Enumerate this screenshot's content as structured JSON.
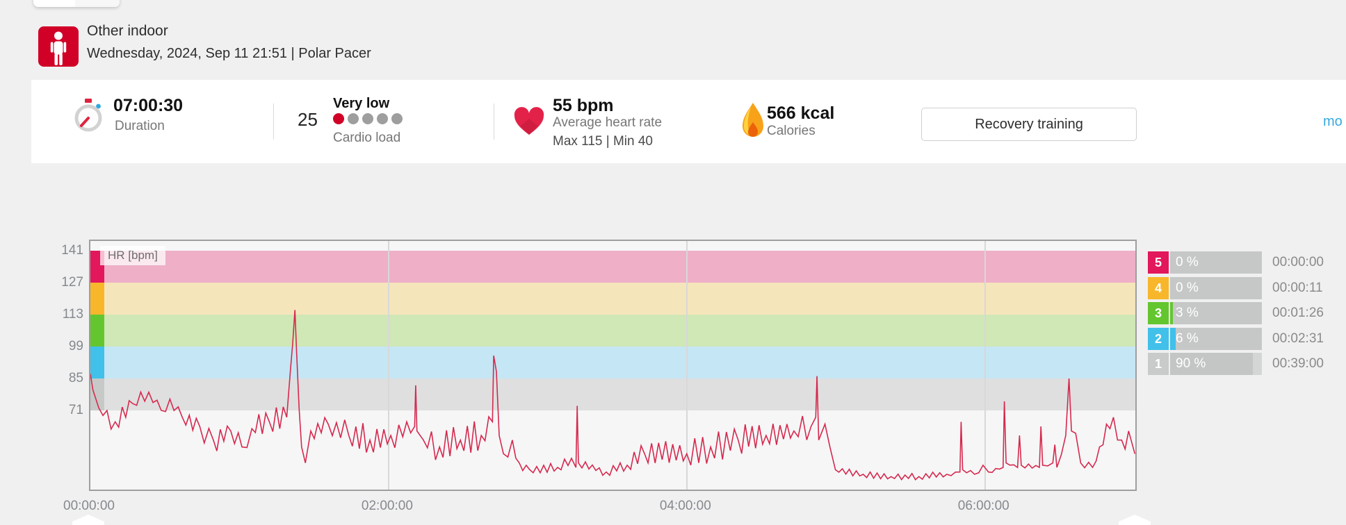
{
  "header": {
    "activity_type": "Other indoor",
    "date_line": "Wednesday, 2024, Sep 11 21:51  |  Polar Pacer",
    "icon": "person-activity-icon",
    "icon_bg": "#d10027"
  },
  "stats": {
    "duration": {
      "value": "07:00:30",
      "label": "Duration"
    },
    "cardio_load": {
      "value": "25",
      "level": "Very low",
      "label": "Cardio load",
      "dots_total": 5,
      "dots_filled": 1,
      "dot_filled_color": "#d10027",
      "dot_empty_color": "#9e9e9e"
    },
    "heart_rate": {
      "value": "55 bpm",
      "label": "Average heart rate",
      "max_min": "Max 115  |  Min 40"
    },
    "calories": {
      "value": "566 kcal",
      "label": "Calories"
    },
    "recovery_button_label": "Recovery training",
    "more_link_label": "mo"
  },
  "chart_data": {
    "type": "line",
    "title": "HR [bpm]",
    "line_color": "#d5294d",
    "duration_minutes": 420.5,
    "x_ticks": [
      {
        "label": "00:00:00",
        "minutes": 0
      },
      {
        "label": "02:00:00",
        "minutes": 120
      },
      {
        "label": "04:00:00",
        "minutes": 240
      },
      {
        "label": "06:00:00",
        "minutes": 360
      }
    ],
    "y_ticks": [
      141,
      127,
      113,
      99,
      85,
      71
    ],
    "zones_bands": [
      {
        "zone": 5,
        "from_bpm": 127,
        "to_bpm": 141,
        "band_color": "#eeafc7",
        "bar_color": "#e2175c"
      },
      {
        "zone": 4,
        "from_bpm": 113,
        "to_bpm": 127,
        "band_color": "#f5e5bb",
        "bar_color": "#f8b62b"
      },
      {
        "zone": 3,
        "from_bpm": 99,
        "to_bpm": 113,
        "band_color": "#d0e7b6",
        "bar_color": "#64c62f"
      },
      {
        "zone": 2,
        "from_bpm": 85,
        "to_bpm": 99,
        "band_color": "#c5e6f4",
        "bar_color": "#41c0ea"
      },
      {
        "zone": 1,
        "from_bpm": 71,
        "to_bpm": 85,
        "band_color": "#dfdfe0",
        "bar_color": "#c6c9c7"
      }
    ],
    "series": [
      {
        "name": "HR",
        "max": 115,
        "min": 40,
        "avg": 55,
        "points": [
          [
            0,
            87,
            0
          ],
          [
            1,
            80,
            2
          ],
          [
            3.4,
            72,
            4
          ],
          [
            10,
            66,
            5
          ],
          [
            17,
            74,
            4
          ],
          [
            23.5,
            79,
            3
          ],
          [
            28.5,
            71,
            4
          ],
          [
            32,
            76,
            3
          ],
          [
            37,
            68,
            4
          ],
          [
            44,
            64,
            5
          ],
          [
            49.5,
            58,
            6
          ],
          [
            56.5,
            62,
            6
          ],
          [
            61,
            55,
            5
          ],
          [
            65,
            63,
            5
          ],
          [
            72,
            66,
            6
          ],
          [
            79,
            68,
            5
          ],
          [
            80.6,
            90,
            0
          ],
          [
            81.4,
            100,
            0
          ],
          [
            82.3,
            115,
            0
          ],
          [
            83,
            96,
            0
          ],
          [
            84,
            72,
            0
          ],
          [
            85,
            55,
            0
          ],
          [
            86.5,
            48,
            2
          ],
          [
            88.7,
            62,
            4
          ],
          [
            95.7,
            65,
            6
          ],
          [
            104,
            60,
            7
          ],
          [
            112.5,
            58,
            7
          ],
          [
            120.9,
            60,
            7
          ],
          [
            130.5,
            64,
            3
          ],
          [
            130.9,
            82,
            0
          ],
          [
            131.4,
            62,
            2
          ],
          [
            134,
            58,
            6
          ],
          [
            140.5,
            55,
            7
          ],
          [
            148.9,
            58,
            7
          ],
          [
            157.3,
            60,
            7
          ],
          [
            161.8,
            66,
            3
          ],
          [
            162.3,
            95,
            0
          ],
          [
            163.4,
            88,
            0
          ],
          [
            164.5,
            60,
            2
          ],
          [
            166.2,
            52,
            4
          ],
          [
            169.8,
            58,
            5
          ],
          [
            172.6,
            48,
            3
          ],
          [
            176.8,
            45,
            2
          ],
          [
            188,
            46,
            2
          ],
          [
            193.6,
            50,
            3
          ],
          [
            195.4,
            46,
            1
          ],
          [
            195.9,
            73,
            0
          ],
          [
            196.4,
            48,
            2
          ],
          [
            207.6,
            44,
            2
          ],
          [
            216,
            47,
            3
          ],
          [
            223,
            52,
            5
          ],
          [
            240,
            52,
            6
          ],
          [
            249.6,
            55,
            7
          ],
          [
            260.7,
            58,
            7
          ],
          [
            271.9,
            60,
            7
          ],
          [
            283.1,
            62,
            7
          ],
          [
            290,
            64,
            5
          ],
          [
            291.9,
            68,
            2
          ],
          [
            292.4,
            86,
            0
          ],
          [
            293.1,
            58,
            3
          ],
          [
            295.6,
            65,
            4
          ],
          [
            297.6,
            55,
            4
          ],
          [
            299.8,
            45,
            2
          ],
          [
            311,
            43,
            1.5
          ],
          [
            322.2,
            42,
            1.5
          ],
          [
            333.4,
            42,
            1.5
          ],
          [
            344.6,
            43,
            1.5
          ],
          [
            349.9,
            44,
            0
          ],
          [
            350.4,
            66,
            0
          ],
          [
            351,
            45,
            0
          ],
          [
            355.8,
            43,
            2
          ],
          [
            359.2,
            47,
            2
          ],
          [
            361.4,
            44,
            1.5
          ],
          [
            367.3,
            46,
            0
          ],
          [
            367.8,
            75,
            0
          ],
          [
            368.5,
            48,
            0
          ],
          [
            373.1,
            46,
            1
          ],
          [
            373.9,
            60,
            0
          ],
          [
            374.6,
            47,
            1
          ],
          [
            381.9,
            46,
            1
          ],
          [
            382.5,
            64,
            0
          ],
          [
            383.2,
            47,
            1
          ],
          [
            387.3,
            48,
            1
          ],
          [
            388.1,
            56,
            0
          ],
          [
            388.9,
            46,
            1
          ],
          [
            392.5,
            60,
            2
          ],
          [
            393.8,
            85,
            0
          ],
          [
            394.8,
            62,
            0
          ],
          [
            396.5,
            61,
            3
          ],
          [
            398.5,
            48,
            2
          ],
          [
            403.3,
            46,
            2
          ],
          [
            406.1,
            55,
            5
          ],
          [
            408.9,
            65,
            5
          ],
          [
            411.7,
            68,
            6
          ],
          [
            415,
            58,
            7
          ],
          [
            417.8,
            62,
            6
          ],
          [
            420.3,
            52,
            4
          ]
        ]
      }
    ]
  },
  "zone_table": {
    "rows": [
      {
        "zone": "5",
        "percent": "0 %",
        "pct": 0,
        "time": "00:00:00",
        "color": "#e2175c",
        "fill_color": "#e2175c"
      },
      {
        "zone": "4",
        "percent": "0 %",
        "pct": 0,
        "time": "00:00:11",
        "color": "#f8b62b",
        "fill_color": "#f8b62b"
      },
      {
        "zone": "3",
        "percent": "3 %",
        "pct": 3,
        "time": "00:01:26",
        "color": "#64c62f",
        "fill_color": "#64c62f"
      },
      {
        "zone": "2",
        "percent": "6 %",
        "pct": 6,
        "time": "00:02:31",
        "color": "#41c0ea",
        "fill_color": "#41c0ea"
      },
      {
        "zone": "1",
        "percent": "90 %",
        "pct": 90,
        "time": "00:39:00",
        "color": "#c8cbc9",
        "fill_color": "#c3c6c4"
      }
    ],
    "track_color": "#c6c8c7",
    "zone1_rest_color": "#d4d6d5"
  }
}
